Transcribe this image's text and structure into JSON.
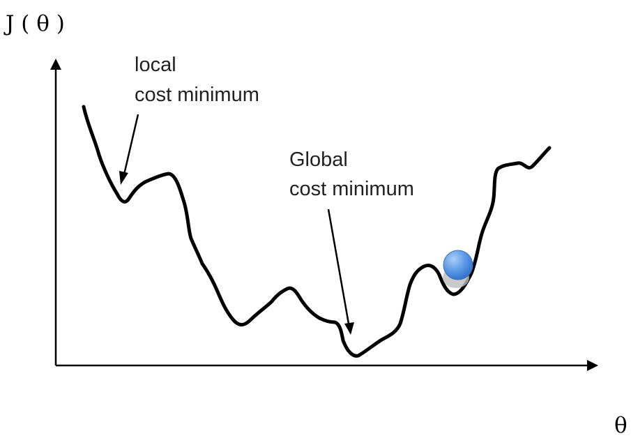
{
  "y_axis_label": "J ( θ )",
  "x_axis_label": "θ",
  "annotations": {
    "local_minimum": [
      "local",
      "cost minimum"
    ],
    "global_minimum": [
      "Global",
      "cost minimum"
    ]
  },
  "colors": {
    "curve": "#000000",
    "ball_fill": "#4f8ee0",
    "ball_highlight": "#9cc4f5",
    "ball_shadow": "#b9b9b9"
  }
}
